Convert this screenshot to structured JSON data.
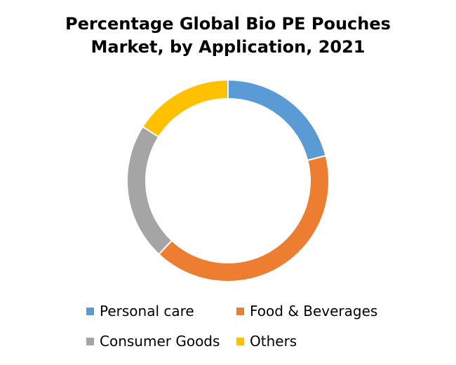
{
  "chart_data": {
    "type": "pie",
    "variant": "donut",
    "title_lines": [
      "Percentage Global Bio PE Pouches",
      "Market, by Application, 2021"
    ],
    "categories": [
      "Personal care",
      "Food & Beverages",
      "Consumer Goods",
      "Others"
    ],
    "values": [
      21,
      41,
      22,
      16
    ],
    "unit": "%",
    "colors": [
      "#5B9BD5",
      "#ED7D31",
      "#A5A5A5",
      "#FFC000"
    ],
    "legend_position": "bottom"
  }
}
